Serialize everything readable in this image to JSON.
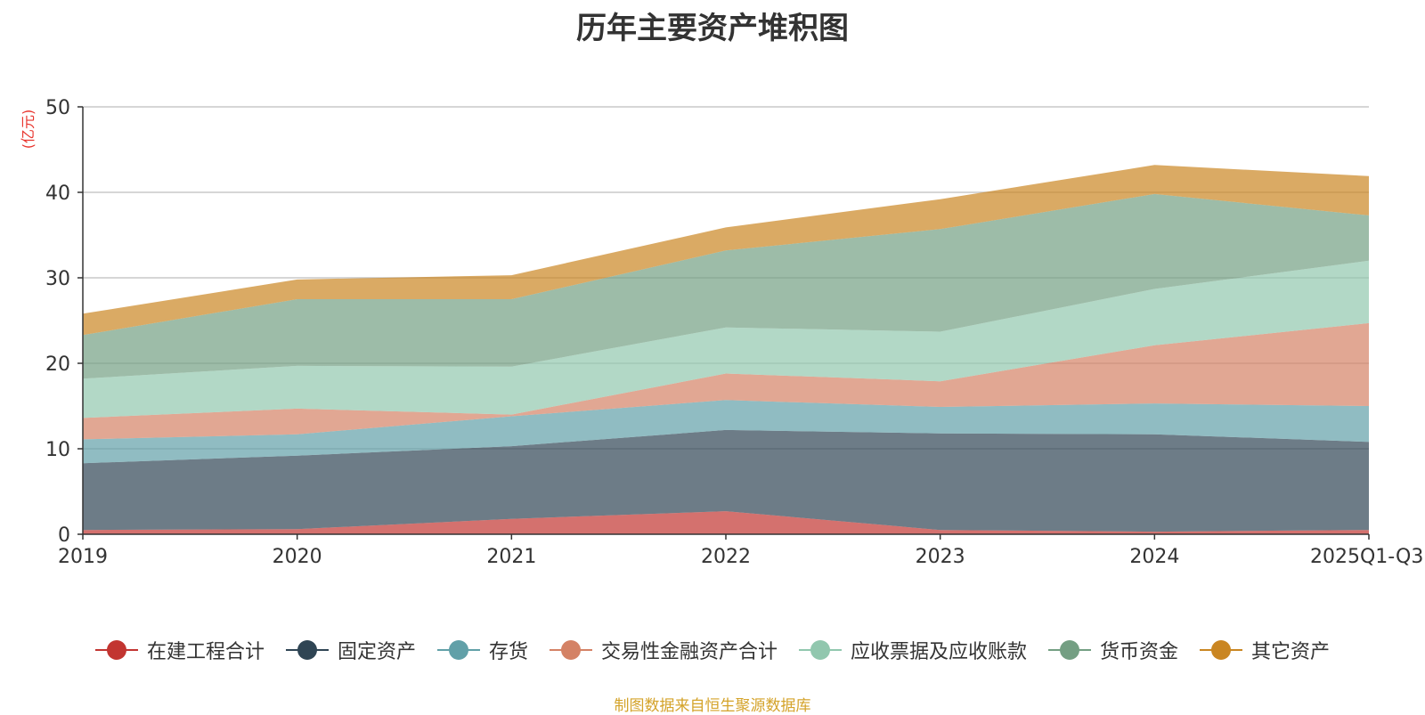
{
  "chart_data": {
    "type": "area",
    "stacked": true,
    "title": "历年主要资产堆积图",
    "ylabel": "(亿元)",
    "xlabel": "",
    "ylim": [
      0,
      50
    ],
    "yticks": [
      0,
      10,
      20,
      30,
      40,
      50
    ],
    "categories": [
      "2019",
      "2020",
      "2021",
      "2022",
      "2023",
      "2024",
      "2025Q1-Q3"
    ],
    "series": [
      {
        "name": "在建工程合计",
        "color": "#c23531",
        "values": [
          0.5,
          0.6,
          1.8,
          2.7,
          0.5,
          0.3,
          0.5
        ]
      },
      {
        "name": "固定资产",
        "color": "#2f4554",
        "values": [
          7.8,
          8.6,
          8.5,
          9.5,
          11.3,
          11.4,
          10.3
        ]
      },
      {
        "name": "存货",
        "color": "#61a0a8",
        "values": [
          2.8,
          2.5,
          3.5,
          3.5,
          3.1,
          3.6,
          4.2
        ]
      },
      {
        "name": "交易性金融资产合计",
        "color": "#d48265",
        "values": [
          2.5,
          3.0,
          0.2,
          3.1,
          3.0,
          6.8,
          9.7
        ]
      },
      {
        "name": "应收票据及应收账款",
        "color": "#91c7ae",
        "values": [
          4.6,
          5.0,
          5.6,
          5.4,
          5.8,
          6.6,
          7.3
        ]
      },
      {
        "name": "货币资金",
        "color": "#749f83",
        "values": [
          5.1,
          7.8,
          7.9,
          9.0,
          12.0,
          11.1,
          5.3
        ]
      },
      {
        "name": "其它资产",
        "color": "#ca8622",
        "values": [
          2.5,
          2.3,
          2.8,
          2.7,
          3.5,
          3.4,
          4.6
        ]
      }
    ],
    "legend_position": "bottom"
  },
  "footer": "制图数据来自恒生聚源数据库"
}
